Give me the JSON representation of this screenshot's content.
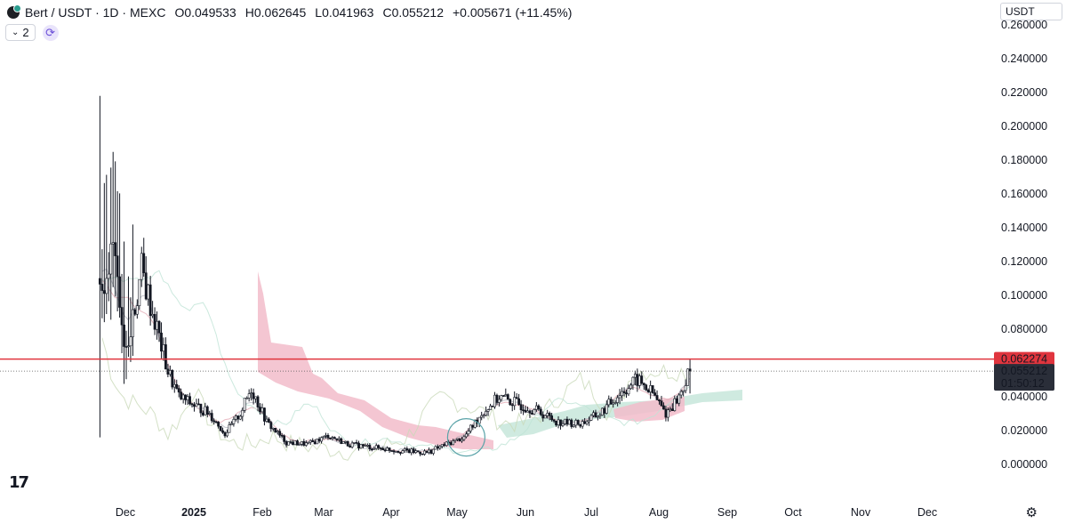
{
  "header": {
    "symbol": "Bert / USDT · 1D · MEXC",
    "open_label": "O",
    "open": "0.049533",
    "high_label": "H",
    "high": "0.062645",
    "low_label": "L",
    "low": "0.041963",
    "close_label": "C",
    "close": "0.055212",
    "change": "+0.005671 (+11.45%)",
    "indicator_count": "2"
  },
  "currency_selector": "USDT",
  "price_labels": {
    "horizontal_line": "0.062274",
    "last_price": "0.055212",
    "countdown": "01:50:12"
  },
  "colors": {
    "candle": "#131722",
    "horizontal_line": "#e0353e",
    "cloud_bear": "#f2bcca",
    "cloud_bull": "#bfe3d6",
    "circle": "#5aa3a8"
  },
  "chart_data": {
    "type": "candlestick",
    "y_ticks": [
      "0.260000",
      "0.240000",
      "0.220000",
      "0.200000",
      "0.180000",
      "0.160000",
      "0.140000",
      "0.120000",
      "0.100000",
      "0.080000",
      "0.060000",
      "0.040000",
      "0.020000",
      "0.000000"
    ],
    "ylim": [
      0,
      0.26
    ],
    "x_ticks": [
      "Dec",
      "2025",
      "Feb",
      "Mar",
      "Apr",
      "May",
      "Jun",
      "Jul",
      "Aug",
      "Sep",
      "Oct",
      "Nov",
      "Dec"
    ],
    "horizontal_line": 0.062274,
    "last_close": 0.055212,
    "close_series": [
      {
        "date": "2024-11-22",
        "close": 0.11
      },
      {
        "date": "2024-11-25",
        "close": 0.135
      },
      {
        "date": "2024-11-28",
        "close": 0.085
      },
      {
        "date": "2024-12-01",
        "close": 0.07
      },
      {
        "date": "2024-12-04",
        "close": 0.085
      },
      {
        "date": "2024-12-08",
        "close": 0.115
      },
      {
        "date": "2024-12-12",
        "close": 0.095
      },
      {
        "date": "2024-12-16",
        "close": 0.075
      },
      {
        "date": "2024-12-20",
        "close": 0.055
      },
      {
        "date": "2024-12-25",
        "close": 0.04
      },
      {
        "date": "2025-01-01",
        "close": 0.035
      },
      {
        "date": "2025-01-08",
        "close": 0.03
      },
      {
        "date": "2025-01-15",
        "close": 0.018
      },
      {
        "date": "2025-01-22",
        "close": 0.03
      },
      {
        "date": "2025-01-27",
        "close": 0.045
      },
      {
        "date": "2025-02-03",
        "close": 0.025
      },
      {
        "date": "2025-02-12",
        "close": 0.013
      },
      {
        "date": "2025-02-22",
        "close": 0.012
      },
      {
        "date": "2025-03-03",
        "close": 0.017
      },
      {
        "date": "2025-03-12",
        "close": 0.012
      },
      {
        "date": "2025-03-24",
        "close": 0.01
      },
      {
        "date": "2025-04-06",
        "close": 0.008
      },
      {
        "date": "2025-04-17",
        "close": 0.007
      },
      {
        "date": "2025-04-26",
        "close": 0.012
      },
      {
        "date": "2025-05-04",
        "close": 0.016
      },
      {
        "date": "2025-05-12",
        "close": 0.03
      },
      {
        "date": "2025-05-20",
        "close": 0.04
      },
      {
        "date": "2025-05-28",
        "close": 0.036
      },
      {
        "date": "2025-06-06",
        "close": 0.032
      },
      {
        "date": "2025-06-16",
        "close": 0.025
      },
      {
        "date": "2025-06-26",
        "close": 0.024
      },
      {
        "date": "2025-07-05",
        "close": 0.03
      },
      {
        "date": "2025-07-14",
        "close": 0.042
      },
      {
        "date": "2025-07-22",
        "close": 0.05
      },
      {
        "date": "2025-07-29",
        "close": 0.042
      },
      {
        "date": "2025-08-04",
        "close": 0.03
      },
      {
        "date": "2025-08-10",
        "close": 0.04
      },
      {
        "date": "2025-08-15",
        "close": 0.055212
      }
    ]
  }
}
